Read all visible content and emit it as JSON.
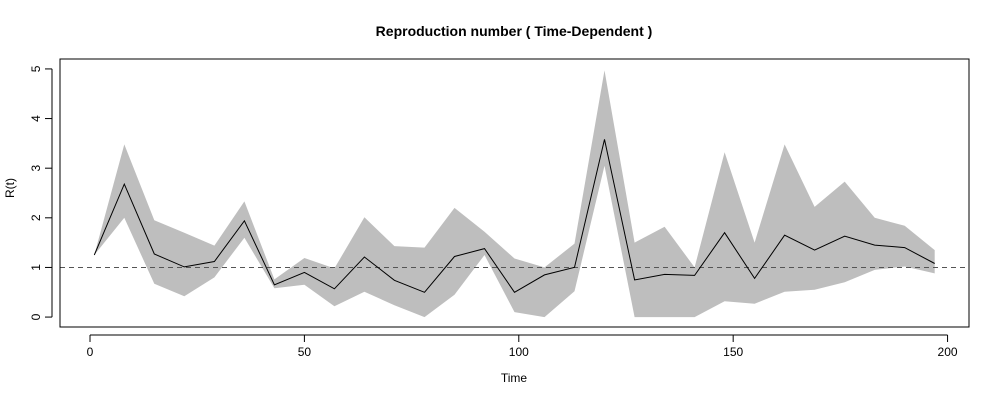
{
  "chart_data": {
    "type": "line",
    "title": "Reproduction number ( Time-Dependent )",
    "xlabel": "Time",
    "ylabel": "R(t)",
    "xlim": [
      -7,
      205
    ],
    "ylim": [
      -0.2,
      5.2
    ],
    "x_ticks": [
      0,
      50,
      100,
      150,
      200
    ],
    "y_ticks": [
      0,
      1,
      2,
      3,
      4,
      5
    ],
    "reference_line": {
      "y": 1,
      "style": "dashed",
      "color": "#555555"
    },
    "band_color": "#bebebe",
    "line_color": "#000000",
    "series": [
      {
        "x": [
          1,
          8,
          15,
          22,
          29,
          36,
          43,
          50,
          57,
          64,
          71,
          78,
          85,
          92,
          99,
          106,
          113,
          120,
          127,
          134,
          141,
          148,
          155,
          162,
          169,
          176,
          183,
          190,
          197
        ],
        "values": [
          1.25,
          2.68,
          1.27,
          1.01,
          1.12,
          1.94,
          0.65,
          0.9,
          0.57,
          1.21,
          0.74,
          0.5,
          1.22,
          1.38,
          0.5,
          0.85,
          1.0,
          3.58,
          0.75,
          0.86,
          0.84,
          1.7,
          0.78,
          1.65,
          1.35,
          1.63,
          1.45,
          1.4,
          1.08
        ]
      }
    ],
    "band": {
      "lower": [
        1.25,
        2.0,
        0.67,
        0.42,
        0.8,
        1.6,
        0.58,
        0.65,
        0.22,
        0.51,
        0.24,
        0.0,
        0.45,
        1.25,
        0.1,
        0.0,
        0.52,
        3.05,
        0.0,
        0.0,
        0.0,
        0.32,
        0.27,
        0.51,
        0.55,
        0.7,
        0.95,
        1.02,
        0.88
      ],
      "upper": [
        1.25,
        3.48,
        1.95,
        1.7,
        1.44,
        2.33,
        0.76,
        1.19,
        0.98,
        2.01,
        1.43,
        1.4,
        2.2,
        1.72,
        1.18,
        1.0,
        1.48,
        4.97,
        1.5,
        1.82,
        1.0,
        3.32,
        1.5,
        3.48,
        2.22,
        2.73,
        2.0,
        1.84,
        1.35
      ]
    }
  }
}
